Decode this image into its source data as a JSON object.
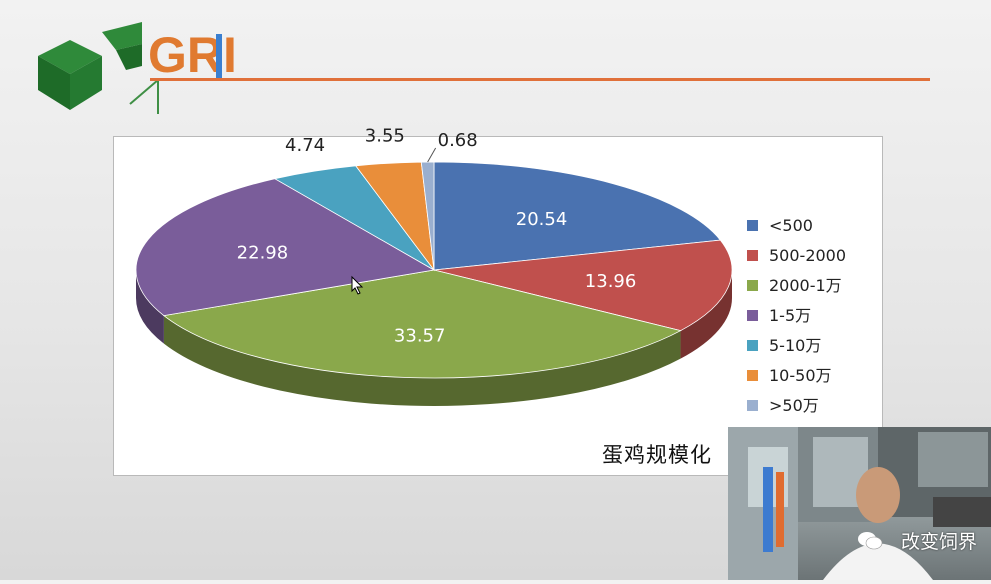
{
  "logo": {
    "text": "GRI"
  },
  "chart_data": {
    "type": "pie",
    "title": "蛋鸡规模化",
    "categories": [
      "<500",
      "500-2000",
      "2000-1万",
      "1-5万",
      "5-10万",
      "10-50万",
      ">50万"
    ],
    "values": [
      20.54,
      13.96,
      33.57,
      22.98,
      4.74,
      3.55,
      0.68
    ],
    "value_labels": [
      "20.54",
      "13.96",
      "33.57",
      "22.98",
      "4.74",
      "3.55",
      "0.68"
    ],
    "colors": [
      "#4a72b0",
      "#c0504d",
      "#8aa84b",
      "#7a5d9a",
      "#4aa2c0",
      "#e98e3a",
      "#9aafcf"
    ],
    "legend_position": "right",
    "style": "3d-pie"
  },
  "video_overlay": {
    "watermark": "改变饲界"
  }
}
